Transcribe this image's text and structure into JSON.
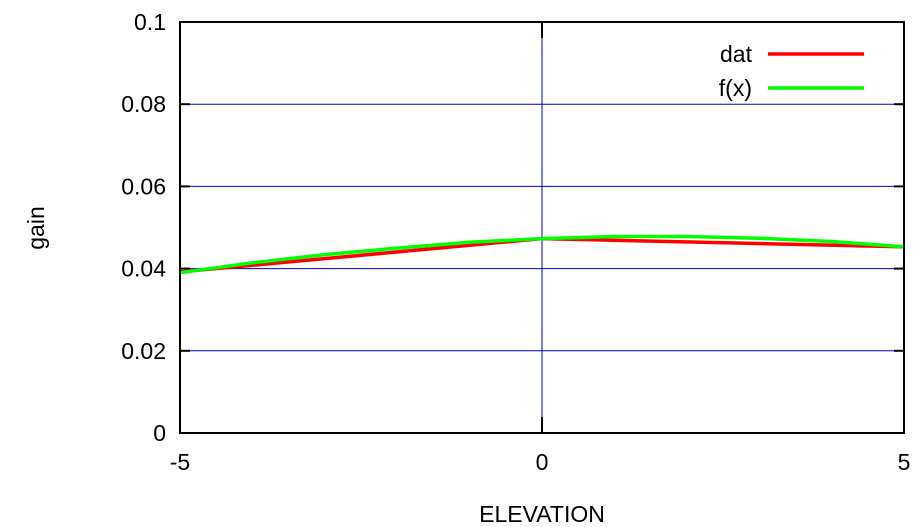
{
  "chart_data": {
    "type": "line",
    "title": "",
    "xlabel": "ELEVATION",
    "ylabel": "gain",
    "xlim": [
      -5,
      5
    ],
    "ylim": [
      0,
      0.1
    ],
    "x_ticks": [
      "-5",
      "0",
      "5"
    ],
    "y_ticks": [
      "0",
      "0.02",
      "0.04",
      "0.06",
      "0.08",
      "0.1"
    ],
    "grid": "horizontal lines at y ticks and a vertical line at x = 0",
    "legend_position": "top-right",
    "series": [
      {
        "name": "dat",
        "color": "#ff0000",
        "x": [
          -5,
          0,
          5
        ],
        "y": [
          0.0392,
          0.0473,
          0.0453
        ]
      },
      {
        "name": "f(x)",
        "color": "#00ff00",
        "x": [
          -5,
          -4,
          -3,
          -2,
          -1,
          0,
          1,
          2,
          3,
          4,
          5
        ],
        "y": [
          0.039,
          0.0414,
          0.0434,
          0.045,
          0.0464,
          0.0473,
          0.0478,
          0.0478,
          0.0474,
          0.0466,
          0.0453
        ]
      }
    ]
  }
}
